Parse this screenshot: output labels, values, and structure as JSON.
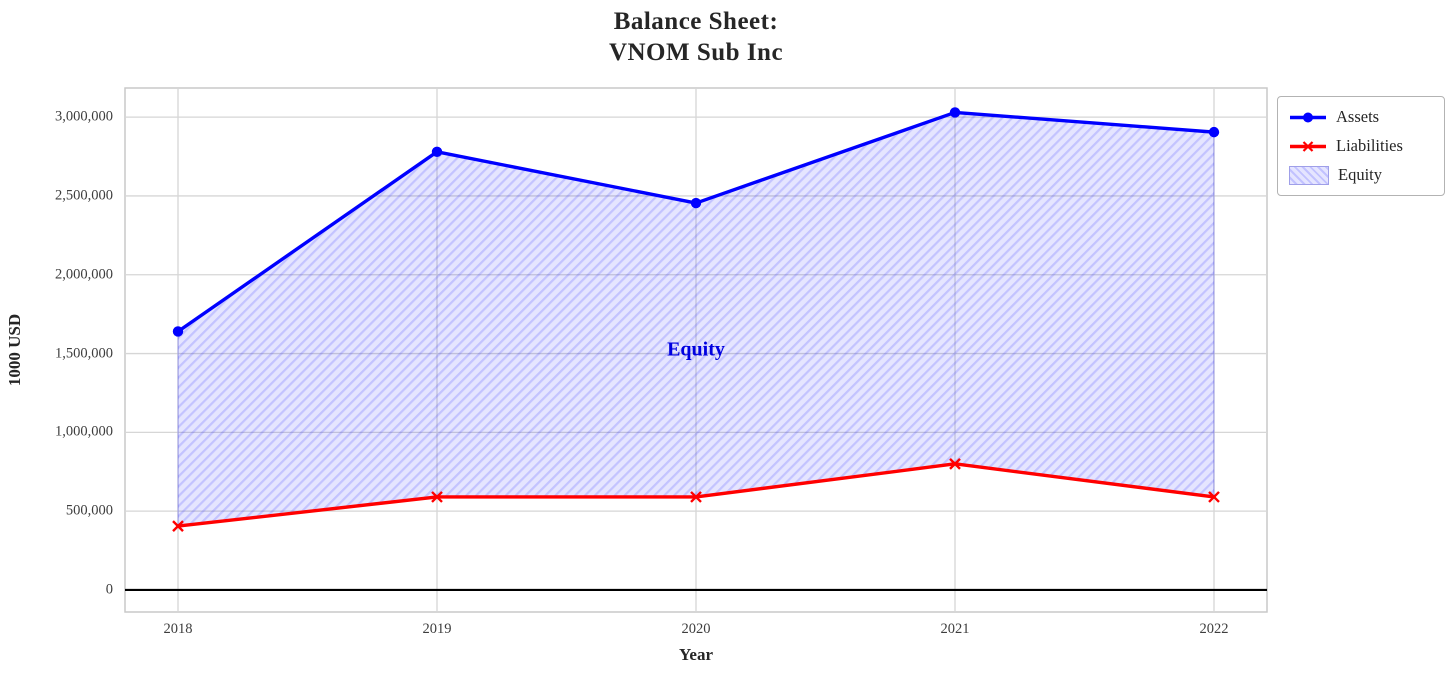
{
  "title": {
    "line1": "Balance Sheet:",
    "line2": "VNOM Sub Inc"
  },
  "chart_data": {
    "type": "line",
    "title": "Balance Sheet:\nVNOM Sub Inc",
    "xlabel": "Year",
    "ylabel": "1000 USD",
    "categories": [
      "2018",
      "2019",
      "2020",
      "2021",
      "2022"
    ],
    "series": [
      {
        "name": "Assets",
        "color": "#0000ff",
        "marker": "circle",
        "values": [
          1640000,
          2780000,
          2455000,
          3030000,
          2905000
        ]
      },
      {
        "name": "Liabilities",
        "color": "#ff0000",
        "marker": "x",
        "values": [
          405000,
          590000,
          590000,
          800000,
          590000
        ]
      }
    ],
    "area": {
      "label": "Equity",
      "between": [
        "Assets",
        "Liabilities"
      ],
      "fill_color": "#0000ff",
      "hatch": "diagonal",
      "annotation": {
        "text": "Equity",
        "color": "#0000e0",
        "x": "2020",
        "y": 1520000
      }
    },
    "yticks": {
      "values": [
        0,
        500000,
        1000000,
        1500000,
        2000000,
        2500000,
        3000000
      ],
      "labels": [
        "0",
        "500,000",
        "1,000,000",
        "1,500,000",
        "2,000,000",
        "2,500,000",
        "3,000,000"
      ]
    },
    "ylim": [
      -140000,
      3185000
    ],
    "grid": true,
    "zero_line": true,
    "legend_position": "outside-upper-right"
  },
  "legend": {
    "items": [
      {
        "label": "Assets"
      },
      {
        "label": "Liabilities"
      },
      {
        "label": "Equity"
      }
    ]
  },
  "colors": {
    "assets": "#0000ff",
    "liabilities": "#ff0000",
    "annotation": "#0000e0",
    "grid": "#d6d6d6",
    "text": "#262626"
  }
}
